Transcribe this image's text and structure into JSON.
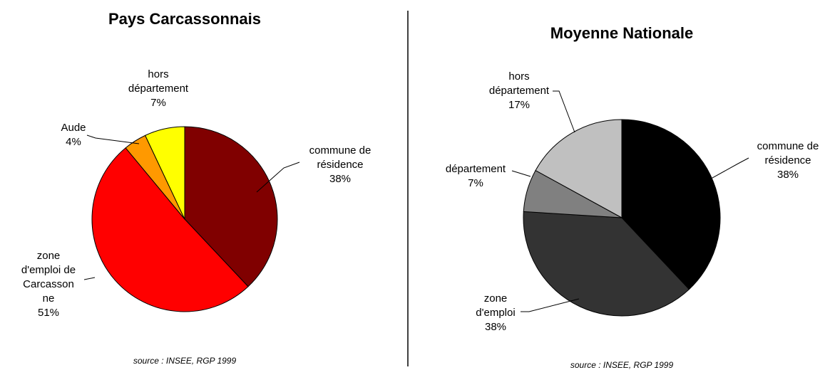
{
  "chart_data": [
    {
      "type": "pie",
      "title": "Pays Carcassonnais",
      "categories": [
        "commune de résidence",
        "zone d'emploi de Carcassonne",
        "Aude",
        "hors département"
      ],
      "values": [
        38,
        51,
        4,
        7
      ],
      "value_labels": [
        "38%",
        "51%",
        "4%",
        "7%"
      ],
      "colors": [
        "#800000",
        "#ff0000",
        "#ff9900",
        "#ffff00"
      ],
      "source": "source : INSEE, RGP 1999"
    },
    {
      "type": "pie",
      "title": "Moyenne Nationale",
      "categories": [
        "commune de résidence",
        "zone d'emploi",
        "département",
        "hors département"
      ],
      "values": [
        38,
        38,
        7,
        17
      ],
      "value_labels": [
        "38%",
        "38%",
        "7%",
        "17%"
      ],
      "colors": [
        "#000000",
        "#333333",
        "#808080",
        "#c0c0c0"
      ],
      "source": "source : INSEE, RGP 1999"
    }
  ]
}
